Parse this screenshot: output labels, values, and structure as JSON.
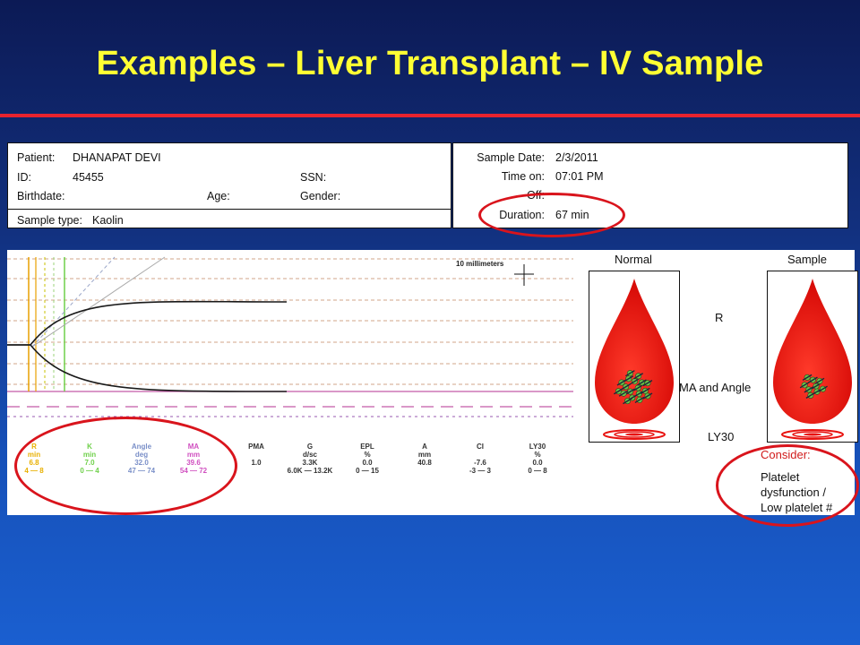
{
  "slide": {
    "title": "Examples – Liver Transplant – IV Sample"
  },
  "patient": {
    "patient_label": "Patient:",
    "patient_value": "DHANAPAT DEVI",
    "id_label": "ID:",
    "id_value": "45455",
    "ssn_label": "SSN:",
    "birthdate_label": "Birthdate:",
    "age_label": "Age:",
    "gender_label": "Gender:",
    "sample_type_label": "Sample type:",
    "sample_type_value": "Kaolin"
  },
  "sample": {
    "date_label": "Sample Date:",
    "date_value": "2/3/2011",
    "time_on_label": "Time on:",
    "time_on_value": "07:01 PM",
    "off_label": "Off:",
    "duration_label": "Duration:",
    "duration_value": "67 min"
  },
  "graph": {
    "scale_label": "10 millimeters",
    "params": [
      {
        "name": "R",
        "unit": "min",
        "value": "6.8",
        "range": "4 — 8",
        "color": "#e8b000"
      },
      {
        "name": "K",
        "unit": "min",
        "value": "7.0",
        "range": "0 — 4",
        "color": "#6fd04a"
      },
      {
        "name": "Angle",
        "unit": "deg",
        "value": "32.0",
        "range": "47 — 74",
        "color": "#7a8fc8"
      },
      {
        "name": "MA",
        "unit": "mm",
        "value": "39.6",
        "range": "54 — 72",
        "color": "#d04fc0"
      },
      {
        "name": "PMA",
        "unit": "",
        "value": "1.0",
        "range": "",
        "color": "#333333"
      },
      {
        "name": "G",
        "unit": "d/sc",
        "value": "3.3K",
        "range": "6.0K — 13.2K",
        "color": "#333333"
      },
      {
        "name": "EPL",
        "unit": "%",
        "value": "0.0",
        "range": "0 — 15",
        "color": "#333333"
      },
      {
        "name": "A",
        "unit": "mm",
        "value": "40.8",
        "range": "",
        "color": "#333333"
      },
      {
        "name": "CI",
        "unit": "",
        "value": "-7.6",
        "range": "-3 — 3",
        "color": "#333333"
      },
      {
        "name": "LY30",
        "unit": "%",
        "value": "0.0",
        "range": "0 — 8",
        "color": "#333333"
      }
    ]
  },
  "drops": {
    "normal_label": "Normal",
    "sample_label": "Sample",
    "r_label": "R",
    "ma_angle_label": "MA and Angle",
    "ly30_label": "LY30"
  },
  "consider": {
    "label": "Consider:",
    "line1": "Platelet",
    "line2": "dysfunction /",
    "line3": "Low platelet #"
  },
  "colors": {
    "title": "#ffff33",
    "accent_red": "#d9141c",
    "drop_red": "#e8120f"
  }
}
